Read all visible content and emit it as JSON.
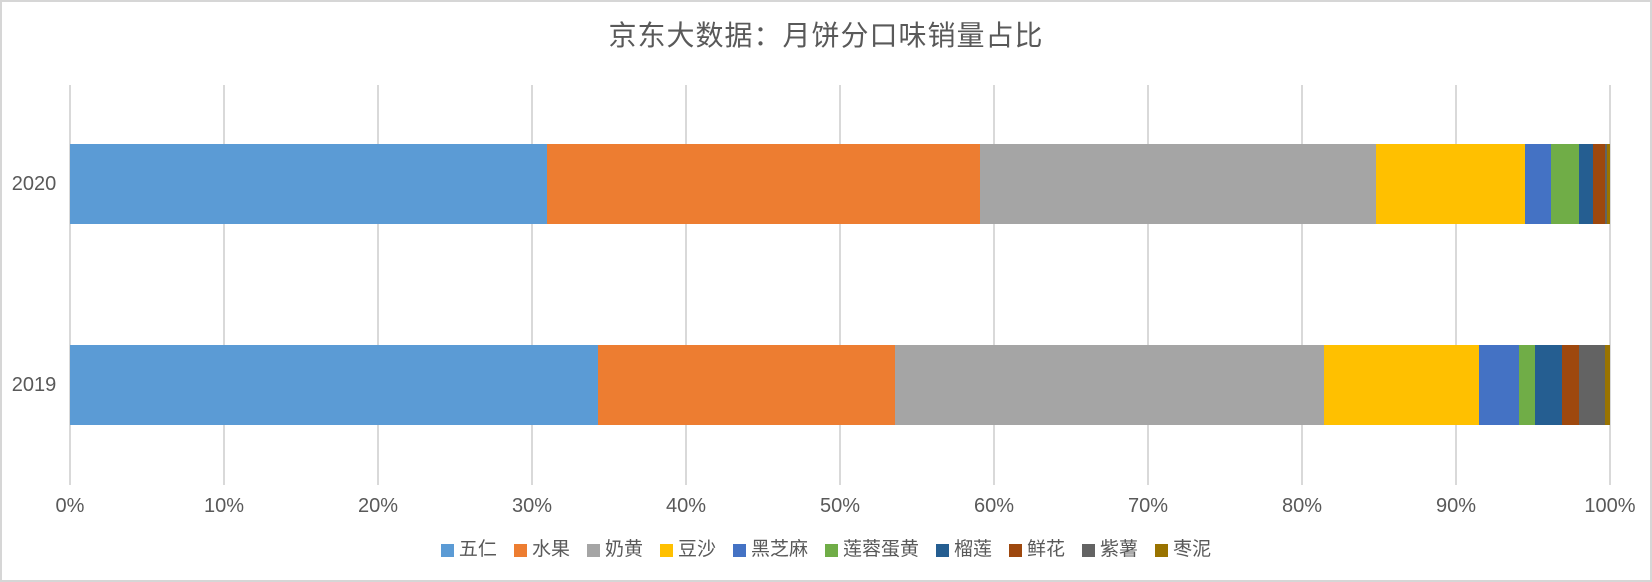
{
  "chart_data": {
    "type": "bar",
    "orientation": "horizontal",
    "stacked": true,
    "title": "京东大数据：月饼分口味销量占比",
    "categories": [
      "2020",
      "2019"
    ],
    "series": [
      {
        "name": "五仁",
        "color": "#5B9BD5",
        "values": [
          31.0,
          34.3
        ]
      },
      {
        "name": "水果",
        "color": "#ED7D31",
        "values": [
          28.1,
          19.3
        ]
      },
      {
        "name": "奶黄",
        "color": "#A5A5A5",
        "values": [
          25.7,
          27.8
        ]
      },
      {
        "name": "豆沙",
        "color": "#FFC000",
        "values": [
          9.7,
          10.1
        ]
      },
      {
        "name": "黑芝麻",
        "color": "#4472C4",
        "values": [
          1.7,
          2.6
        ]
      },
      {
        "name": "莲蓉蛋黄",
        "color": "#70AD47",
        "values": [
          1.8,
          1.0
        ]
      },
      {
        "name": "榴莲",
        "color": "#255E91",
        "values": [
          0.9,
          1.8
        ]
      },
      {
        "name": "鲜花",
        "color": "#9E480E",
        "values": [
          0.8,
          1.1
        ]
      },
      {
        "name": "紫薯",
        "color": "#636363",
        "values": [
          0.1,
          1.7
        ]
      },
      {
        "name": "枣泥",
        "color": "#997300",
        "values": [
          0.2,
          0.3
        ]
      }
    ],
    "x_axis": {
      "min": 0,
      "max": 100,
      "tick_step": 10,
      "ticks": [
        "0%",
        "10%",
        "20%",
        "30%",
        "40%",
        "50%",
        "60%",
        "70%",
        "80%",
        "90%",
        "100%"
      ]
    },
    "xlabel": "",
    "ylabel": "",
    "grid": true,
    "legend_position": "bottom"
  },
  "styles": {
    "background": "#FFFFFF",
    "frame_border": "#D6D6D6",
    "gridline_color": "#D9D9D9",
    "text_color": "#595959"
  }
}
